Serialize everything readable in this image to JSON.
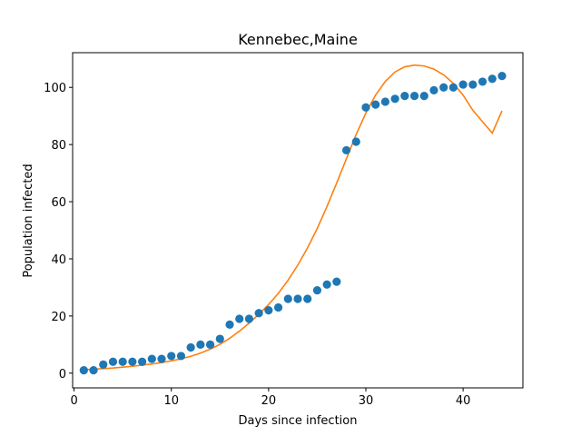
{
  "chart_data": {
    "type": "scatter",
    "title": "Kennebec,Maine",
    "xlabel": "Days since infection",
    "ylabel": "Population infected",
    "xlim": [
      -0.15,
      46.15
    ],
    "ylim": [
      -5.15,
      112.15
    ],
    "xticks": [
      0,
      10,
      20,
      30,
      40
    ],
    "yticks": [
      0,
      20,
      40,
      60,
      80,
      100
    ],
    "grid": false,
    "legend": "none",
    "series": [
      {
        "kind": "scatter",
        "color": "#1f77b4",
        "x": [
          1,
          2,
          3,
          4,
          5,
          6,
          7,
          8,
          9,
          10,
          11,
          12,
          13,
          14,
          15,
          16,
          17,
          18,
          19,
          20,
          21,
          22,
          23,
          24,
          25,
          26,
          27,
          28,
          29,
          30,
          31,
          32,
          33,
          34,
          35,
          36,
          37,
          38,
          39,
          40,
          41,
          42,
          43,
          44
        ],
        "y": [
          1,
          1,
          3,
          4,
          4,
          4,
          4,
          5,
          5,
          6,
          6,
          9,
          10,
          10,
          12,
          17,
          19,
          19,
          21,
          22,
          23,
          26,
          26,
          26,
          29,
          31,
          32,
          78,
          81,
          93,
          94,
          95,
          96,
          97,
          97,
          97,
          99,
          100,
          100,
          101,
          101,
          102,
          103,
          104
        ]
      },
      {
        "kind": "line",
        "color": "#ff7f0e",
        "x": [
          1,
          2,
          3,
          4,
          5,
          6,
          7,
          8,
          9,
          10,
          11,
          12,
          13,
          14,
          15,
          16,
          17,
          18,
          19,
          20,
          21,
          22,
          23,
          24,
          25,
          26,
          27,
          28,
          29,
          30,
          31,
          32,
          33,
          34,
          35,
          36,
          37,
          38,
          39,
          40,
          41,
          42,
          43,
          44
        ],
        "y": [
          1.2,
          1.4,
          1.6,
          1.8,
          2.1,
          2.4,
          2.8,
          3.2,
          3.7,
          4.3,
          5.0,
          5.9,
          7.0,
          8.4,
          10.1,
          12.2,
          14.7,
          17.5,
          20.6,
          24.0,
          27.9,
          32.5,
          37.8,
          43.8,
          50.6,
          58.3,
          66.5,
          75.0,
          83.5,
          91.0,
          97.3,
          102.1,
          105.4,
          107.2,
          107.8,
          107.5,
          106.4,
          104.4,
          101.4,
          97.3,
          92.0,
          88.0,
          84.0,
          91.8
        ]
      }
    ]
  }
}
